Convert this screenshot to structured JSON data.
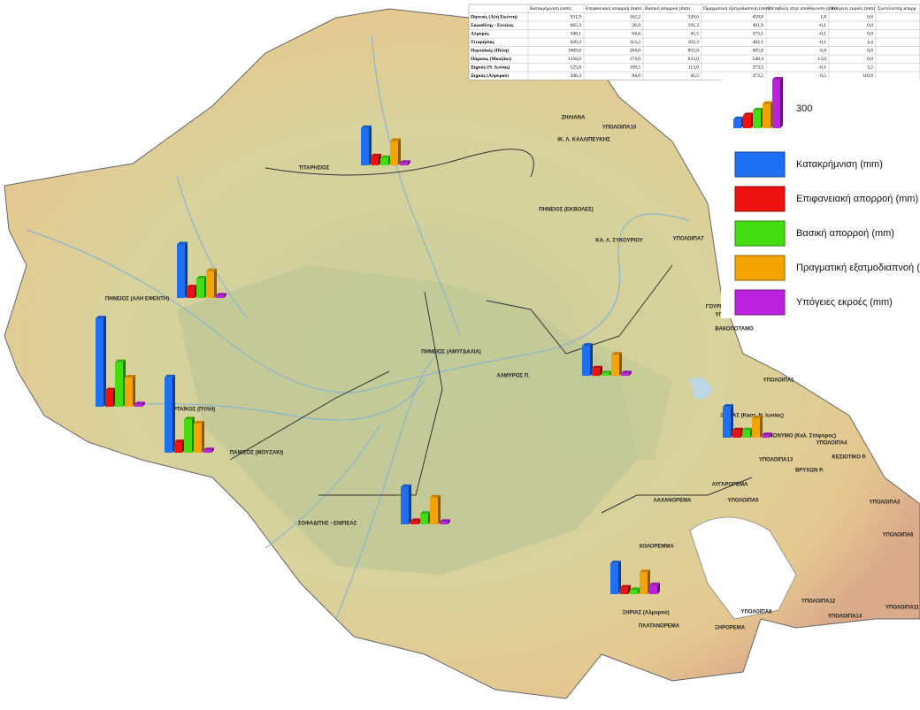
{
  "table": {
    "header": [
      "Κατακρήμνιση (mm)",
      "Επιφανειακή απορροή (mm)",
      "Βασική απορροή (mm)",
      "Πραγματική εξατμοδιαπνοή (mm)",
      "Μεταβολή στην αποθήκευση (mm)",
      "Υπόγειες εκροές (mm)",
      "Συντελεστής απορρ"
    ],
    "rows": [
      [
        "Πηνειός (Αλή Εφέντη)",
        "931,9",
        "162,2",
        "328,6",
        "459,8",
        "1,8",
        "0,0"
      ],
      [
        "Σοφαδίτης - Ενιπέας",
        "665,3",
        "26,9",
        "191,3",
        "401,9",
        "-0,1",
        "0,0"
      ],
      [
        "Αλμυρός",
        "508,1",
        "94,6",
        "45,5",
        "373,5",
        "-0,1",
        "0,0"
      ],
      [
        "Τιταρήσιος",
        "620,2",
        "113,2",
        "102,3",
        "402,1",
        "-0,1",
        "4,4"
      ],
      [
        "Πορταϊκός (Πύλη)",
        "1609,0",
        "284,0",
        "855,8",
        "495,8",
        "0,8",
        "0,0"
      ],
      [
        "Πάμισος (Μουζάκι)",
        "1358,0",
        "174,0",
        "633,0",
        "548,4",
        "13,0",
        "0,0"
      ],
      [
        "Ξηριάς (Ν. Ιωνίας)",
        "525,0",
        "109,5",
        "113,0",
        "373,5",
        "-0,1",
        "3,2"
      ],
      [
        "Ξηριάς (Αλμυρού)",
        "508,4",
        "94,6",
        "45,5",
        "373,5",
        "0,5",
        "110,9"
      ]
    ]
  },
  "legend": {
    "scale_label": "300",
    "sample_values": [
      55,
      80,
      110,
      150,
      300
    ],
    "items": [
      {
        "label": "Κατακρήμνιση (mm)",
        "color": "#1f6ff2"
      },
      {
        "label": "Επιφανειακή απορροή (mm)",
        "color": "#ee1111"
      },
      {
        "label": "Βασική απορροή (mm)",
        "color": "#44dd11"
      },
      {
        "label": "Πραγματική εξατμοδιαπνοή (mm)",
        "color": "#f5a300"
      },
      {
        "label": "Υπόγειες εκροές (mm)",
        "color": "#bb22dd"
      }
    ]
  },
  "charts": [
    {
      "values": [
        230,
        55,
        45,
        150,
        15
      ]
    },
    {
      "values": [
        330,
        65,
        120,
        165,
        15
      ]
    },
    {
      "values": [
        545,
        100,
        275,
        180,
        15
      ]
    },
    {
      "values": [
        465,
        65,
        205,
        180,
        15
      ]
    },
    {
      "values": [
        185,
        45,
        15,
        130,
        15
      ]
    },
    {
      "values": [
        230,
        20,
        65,
        165,
        15
      ]
    },
    {
      "values": [
        190,
        45,
        45,
        120,
        15
      ]
    },
    {
      "values": [
        190,
        40,
        25,
        135,
        55
      ]
    }
  ],
  "regions": [
    "ΖΗΛΙΑΝΑ",
    "ΥΠΟΛΟΙΠΑ10",
    "ΙΚ. Λ. ΚΑΛΛΙΠΕΥΚΗΣ",
    "ΤΙΤΑΡΗΣΙΟΣ",
    "ΠΗΝΕΙΟΣ (ΕΚΒΟΛΕΣ)",
    "ΚΑ. Λ. ΣΥΚΟΥΡΙΟΥ",
    "ΥΠΟΛΟΙΠΑ7",
    "ΠΗΝΕΙΟΣ (ΑΛΗ ΕΦΕΝΤΗ)",
    "ΓΟΥΡΙ Ρ.",
    "ΥΠΟΛΟΙΠΑ3",
    "ΒΑΚΟΠΟΤΑΜΟ",
    "ΠΗΝΕΙΟΣ (ΑΜΥΓΔΑΛΙΑ)",
    "ΑΛΜΥΡΟΣ Π.",
    "ΥΠΟΛΟΙΠΑ1",
    "ΠΟΡΤΑΪΚΟΣ (ΠΥΛΗ)",
    "ΞΗΡΙΑΣ (Καστ. Ν. Ιωνίας)",
    "ΑΝΩΝΥΜΟ (Καλ. Στόφορος)",
    "ΠΑΜΙΣΟΣ (ΜΟΥΖΑΚΙ)",
    "ΥΠΟΛΟΙΠΑ4",
    "ΥΠΟΛΟΙΠΑ13",
    "ΚΕΣΙΟΤΙΚΟ Ρ.",
    "ΒΡΥΧΩΝ Ρ.",
    "ΛΥΓΑΡΟΡΕΜΑ",
    "ΛΑΧΑΝΟΡΕΜΑ",
    "ΥΠΟΛΟΙΠΑ5",
    "ΥΠΟΛΟΙΠΑ2",
    "ΣΟΦΑΔΙΤΗΣ - ΕΝΙΠΕΑΣ",
    "ΥΠΟΛΟΙΠΑ6",
    "ΧΟΛΟΡΕΜΜΑ",
    "ΞΗΡΙΑΣ (Αλμυρού)",
    "ΥΠΟΛΟΙΠΑ12",
    "ΥΠΟΛΟΙΠΑ11",
    "ΥΠΟΛΟΙΠΑ8",
    "ΥΠΟΛΟΙΠΑ14",
    "ΠΛΑΤΑΝΟΡΕΜΑ",
    "ΞΗΡΟΡΕΜΑ"
  ]
}
